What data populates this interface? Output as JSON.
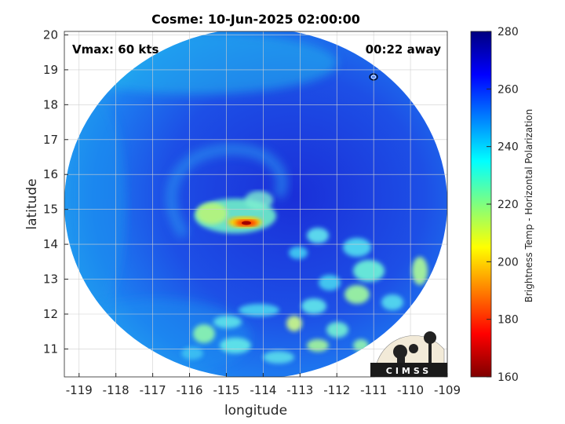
{
  "title": "Cosme: 10-Jun-2025 02:00:00",
  "vmax_label": "Vmax: 60 kts",
  "away_label": "00:22 away",
  "xlabel": "longitude",
  "ylabel": "latitude",
  "x_ticks": [
    "-119",
    "-118",
    "-117",
    "-116",
    "-115",
    "-114",
    "-113",
    "-112",
    "-111",
    "-110",
    "-109"
  ],
  "y_ticks": [
    "20",
    "19",
    "18",
    "17",
    "16",
    "15",
    "14",
    "13",
    "12",
    "11"
  ],
  "colorbar": {
    "label": "Brightness Temp - Horizontal Polarization",
    "ticks": [
      "280",
      "260",
      "240",
      "220",
      "200",
      "180",
      "160"
    ],
    "range": [
      160,
      280
    ],
    "colormap": "jet"
  },
  "logo": {
    "text": "CIMSS"
  },
  "map": {
    "lon_range": [
      -119.4,
      -109
    ],
    "lat_range": [
      10.2,
      20.1
    ],
    "grid": true,
    "swath": "circular microwave footprint",
    "storm_center": [
      -114.5,
      14.6
    ]
  }
}
